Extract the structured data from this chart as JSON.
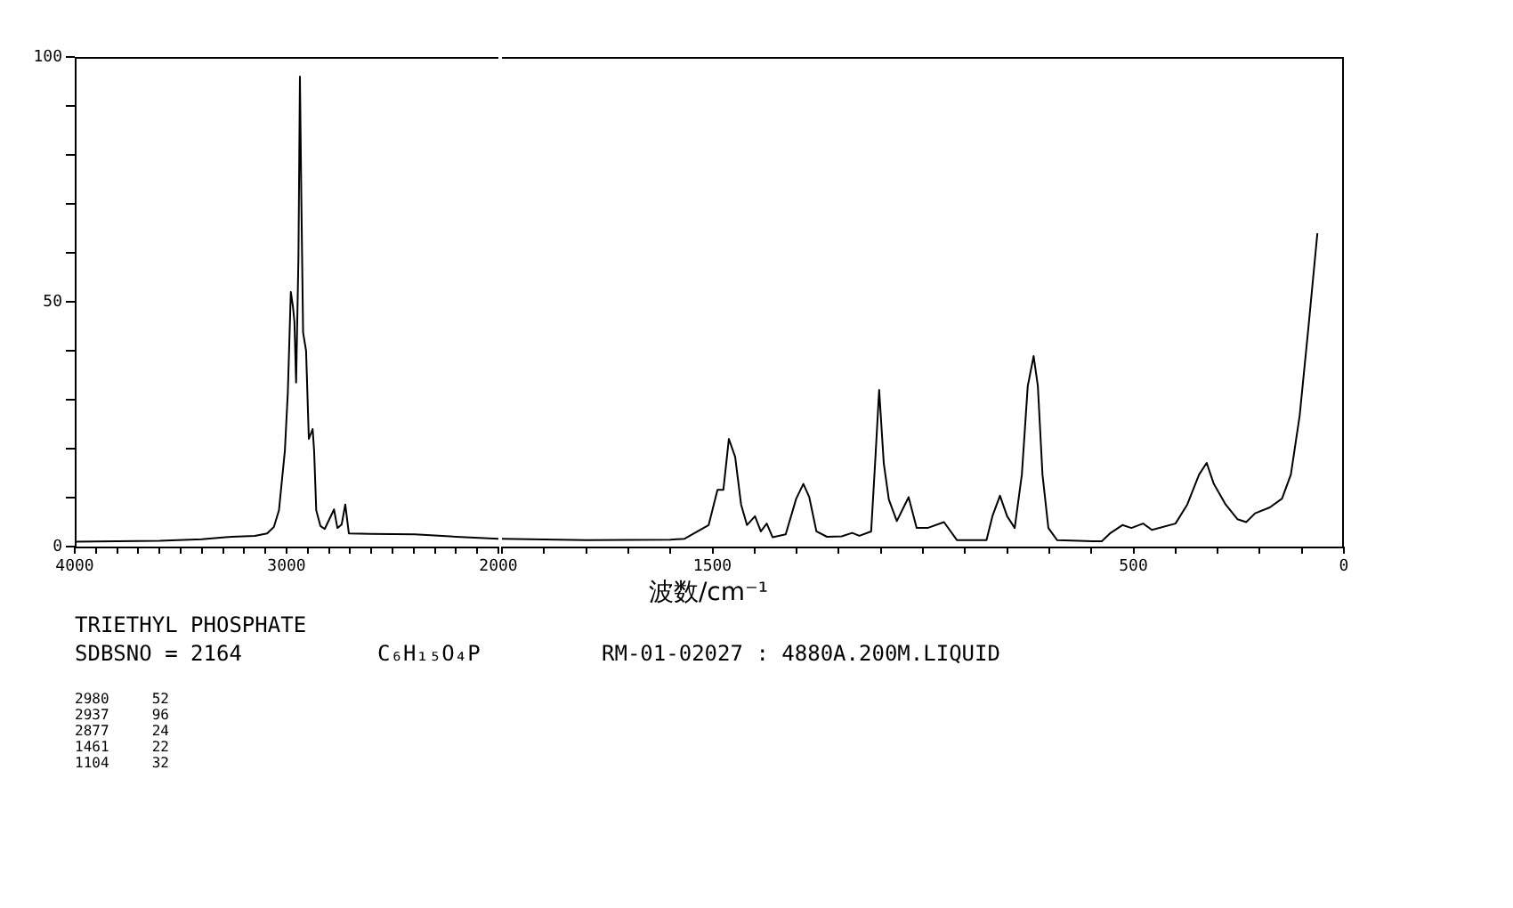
{
  "chart_data": [
    {
      "type": "line",
      "xlim": [
        4000,
        2000
      ],
      "ylim": [
        0,
        100
      ],
      "legend": false,
      "marker": "none",
      "xticks": [
        4000,
        {
          "value": 3900,
          "label": null
        },
        {
          "value": 3800,
          "label": null
        },
        {
          "value": 3700,
          "label": null
        },
        {
          "value": 3600,
          "label": null
        },
        {
          "value": 3500,
          "label": null
        },
        {
          "value": 3400,
          "label": null
        },
        {
          "value": 3300,
          "label": null
        },
        {
          "value": 3200,
          "label": null
        },
        {
          "value": 3100,
          "label": null
        },
        3000,
        {
          "value": 2900,
          "label": null
        },
        {
          "value": 2800,
          "label": null
        },
        {
          "value": 2700,
          "label": null
        },
        {
          "value": 2600,
          "label": null
        },
        {
          "value": 2500,
          "label": null
        },
        {
          "value": 2400,
          "label": null
        },
        {
          "value": 2300,
          "label": null
        },
        {
          "value": 2200,
          "label": null
        },
        {
          "value": 2100,
          "label": null
        },
        2000
      ],
      "yticks": [
        0,
        {
          "value": 10,
          "label": null
        },
        {
          "value": 20,
          "label": null
        },
        {
          "value": 30,
          "label": null
        },
        {
          "value": 40,
          "label": null
        },
        50,
        {
          "value": 60,
          "label": null
        },
        {
          "value": 70,
          "label": null
        },
        {
          "value": 80,
          "label": null
        },
        {
          "value": 90,
          "label": null
        },
        100
      ],
      "series": [
        {
          "color": "#000000",
          "x": [
            4000,
            3800,
            3600,
            3400,
            3260,
            3150,
            3092,
            3060,
            3036,
            3008,
            2994,
            2980,
            2970,
            2963,
            2955,
            2944,
            2937,
            2930,
            2922,
            2908,
            2895,
            2877,
            2870,
            2860,
            2840,
            2820,
            2776,
            2760,
            2740,
            2723,
            2706,
            2600,
            2394,
            2200,
            2000
          ],
          "values": [
            1.0,
            1.1,
            1.2,
            1.5,
            2.0,
            2.2,
            2.7,
            4.0,
            7.4,
            19.6,
            31.6,
            52,
            49,
            46,
            33.5,
            59,
            96,
            70,
            43.7,
            40,
            22,
            24,
            19.6,
            7.4,
            4.2,
            3.6,
            7.6,
            3.8,
            4.5,
            8.6,
            2.7,
            2.6,
            2.5,
            2.0,
            1.6
          ]
        }
      ],
      "annotations": [
        "TRIETHYL PHOSPHATE",
        "SDBSNO = 2164",
        "C₆H₁₅O₄P",
        "RM-01-02027 : 4880A.200M.LIQUID",
        "2980     52",
        "2937     96",
        "2877     24",
        "1461     22",
        "1104     32"
      ]
    },
    {
      "type": "line",
      "xlim": [
        2000,
        0
      ],
      "ylim": [
        0,
        100
      ],
      "legend": false,
      "marker": "none",
      "tick_labels": "x",
      "xlabel": "波数/cm⁻¹",
      "xticks": [
        {
          "value": 2000,
          "label": null
        },
        {
          "value": 1900,
          "label": null
        },
        {
          "value": 1800,
          "label": null
        },
        {
          "value": 1700,
          "label": null
        },
        {
          "value": 1600,
          "label": null
        },
        1500,
        {
          "value": 1400,
          "label": null
        },
        {
          "value": 1300,
          "label": null
        },
        {
          "value": 1200,
          "label": null
        },
        {
          "value": 1100,
          "label": null
        },
        {
          "value": 1000,
          "label": null
        },
        {
          "value": 900,
          "label": null
        },
        {
          "value": 800,
          "label": null
        },
        {
          "value": 700,
          "label": null
        },
        {
          "value": 600,
          "label": null
        },
        500,
        {
          "value": 400,
          "label": null
        },
        {
          "value": 300,
          "label": null
        },
        {
          "value": 200,
          "label": null
        },
        {
          "value": 100,
          "label": null
        },
        0
      ],
      "series": [
        {
          "color": "#000000",
          "x": [
            2000,
            1800,
            1600,
            1566,
            1509,
            1488,
            1474,
            1461,
            1446,
            1432,
            1418,
            1399,
            1385,
            1371,
            1357,
            1326,
            1301,
            1284,
            1270,
            1253,
            1228,
            1193,
            1168,
            1151,
            1123,
            1112,
            1104,
            1093,
            1081,
            1062,
            1034,
            1015,
            989,
            950,
            919,
            849,
            835,
            817,
            800,
            782,
            765,
            751,
            737,
            727,
            716,
            702,
            681,
            597,
            575,
            554,
            526,
            505,
            477,
            456,
            400,
            372,
            344,
            326,
            309,
            281,
            253,
            232,
            211,
            176,
            147,
            126,
            105,
            84,
            63
          ],
          "values": [
            1.6,
            1.3,
            1.4,
            1.6,
            4.4,
            11.6,
            11.6,
            22,
            18.3,
            8.6,
            4.4,
            6.2,
            3.1,
            4.7,
            1.9,
            2.5,
            9.8,
            12.8,
            10.1,
            3.1,
            2.0,
            2.1,
            2.8,
            2.2,
            3.1,
            19.5,
            32,
            17,
            9.6,
            5.2,
            10.1,
            3.8,
            3.8,
            5.0,
            1.3,
            1.3,
            6.2,
            10.4,
            6.2,
            3.8,
            14.7,
            32.8,
            38.9,
            32.8,
            14.7,
            3.8,
            1.3,
            1.1,
            1.1,
            2.8,
            4.4,
            3.8,
            4.7,
            3.4,
            4.7,
            8.6,
            14.7,
            17.1,
            12.8,
            8.6,
            5.6,
            5.0,
            6.8,
            8.0,
            9.8,
            14.7,
            26.8,
            45,
            64
          ]
        }
      ]
    }
  ]
}
